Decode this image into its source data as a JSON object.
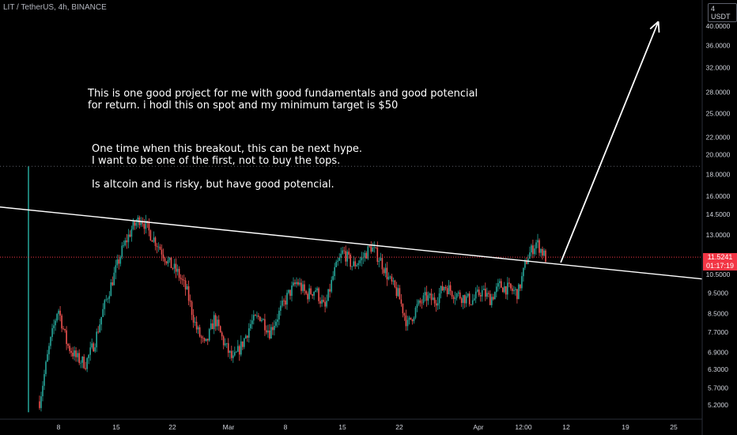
{
  "header": {
    "symbol_title": "LIT / TetherUS, 4h, BINANCE",
    "currency": "4 USDT"
  },
  "annotations": {
    "note1": "This is one good project for me with good fundamentals and good potencial\nfor return. i hodl this on spot and my minimum target is $50",
    "note2": "One time when this breakout, this can be next hype.\nI want to be one of the first, not to buy the tops.\n\nIs altcoin and is risky, but have good potencial."
  },
  "price_tag": {
    "price": "11.5241",
    "countdown": "01:17:19"
  },
  "colors": {
    "background": "#000000",
    "up": "#26a69a",
    "down": "#ef5350",
    "drawing": "#ffffff",
    "price_line": "#f23645",
    "axis_text": "#d1d4dc"
  },
  "chart_data": {
    "type": "candlestick",
    "scale": "log",
    "y_ticks": [
      5.2,
      5.7,
      6.3,
      6.9,
      7.7,
      8.5,
      9.5,
      10.5,
      13.0,
      14.5,
      16.0,
      18.0,
      20.0,
      22.0,
      25.0,
      28.0,
      32.0,
      36.0,
      40.0
    ],
    "y_tick_labels": [
      "5.2000",
      "5.7000",
      "6.3000",
      "6.9000",
      "7.7000",
      "8.5000",
      "9.5000",
      "10.5000",
      "13.0000",
      "14.5000",
      "16.0000",
      "18.0000",
      "20.0000",
      "22.0000",
      "25.0000",
      "28.0000",
      "32.0000",
      "36.0000",
      "40.0000"
    ],
    "x_tick_labels": [
      "8",
      "15",
      "22",
      "Mar",
      "8",
      "15",
      "22",
      "Apr",
      "12:00",
      "12",
      "19",
      "25"
    ],
    "ylim": [
      4.9,
      43.5
    ],
    "last_price": 11.5241,
    "price_path": [
      [
        0,
        5.3
      ],
      [
        1,
        7.0
      ],
      [
        2,
        8.8
      ],
      [
        3,
        7.2
      ],
      [
        4,
        6.7
      ],
      [
        5,
        6.5
      ],
      [
        6,
        7.3
      ],
      [
        7,
        8.8
      ],
      [
        8,
        10.3
      ],
      [
        9,
        12.0
      ],
      [
        10,
        13.4
      ],
      [
        11,
        14.3
      ],
      [
        12,
        13.1
      ],
      [
        13,
        12.2
      ],
      [
        14,
        11.2
      ],
      [
        15,
        10.6
      ],
      [
        16,
        9.6
      ],
      [
        17,
        7.9
      ],
      [
        18,
        7.1
      ],
      [
        19,
        8.3
      ],
      [
        20,
        7.3
      ],
      [
        21,
        6.6
      ],
      [
        22,
        7.2
      ],
      [
        23,
        8.1
      ],
      [
        24,
        8.4
      ],
      [
        25,
        7.7
      ],
      [
        26,
        8.5
      ],
      [
        27,
        9.4
      ],
      [
        28,
        10.1
      ],
      [
        29,
        9.4
      ],
      [
        30,
        9.7
      ],
      [
        31,
        8.7
      ],
      [
        32,
        10.6
      ],
      [
        33,
        11.9
      ],
      [
        34,
        11.0
      ],
      [
        35,
        11.4
      ],
      [
        36,
        12.2
      ],
      [
        37,
        11.4
      ],
      [
        38,
        10.2
      ],
      [
        39,
        9.4
      ],
      [
        40,
        8.0
      ],
      [
        41,
        8.8
      ],
      [
        42,
        9.3
      ],
      [
        43,
        9.1
      ],
      [
        44,
        9.9
      ],
      [
        45,
        9.5
      ],
      [
        46,
        9.3
      ],
      [
        47,
        9.1
      ],
      [
        48,
        9.6
      ],
      [
        49,
        9.2
      ],
      [
        50,
        9.9
      ],
      [
        51,
        9.7
      ],
      [
        52,
        9.5
      ],
      [
        53,
        11.5
      ],
      [
        54,
        12.5
      ],
      [
        55,
        11.5
      ]
    ],
    "initial_spike": {
      "high": 18.8,
      "low": 5.0
    },
    "drawings": {
      "trendline": [
        {
          "t": -0.06,
          "price": 15.2
        },
        {
          "t": 1.0,
          "price": 10.25
        }
      ],
      "target_arrow": [
        {
          "t": 0.79,
          "price": 11.2
        },
        {
          "t": 0.935,
          "price": 41.0
        }
      ]
    }
  }
}
